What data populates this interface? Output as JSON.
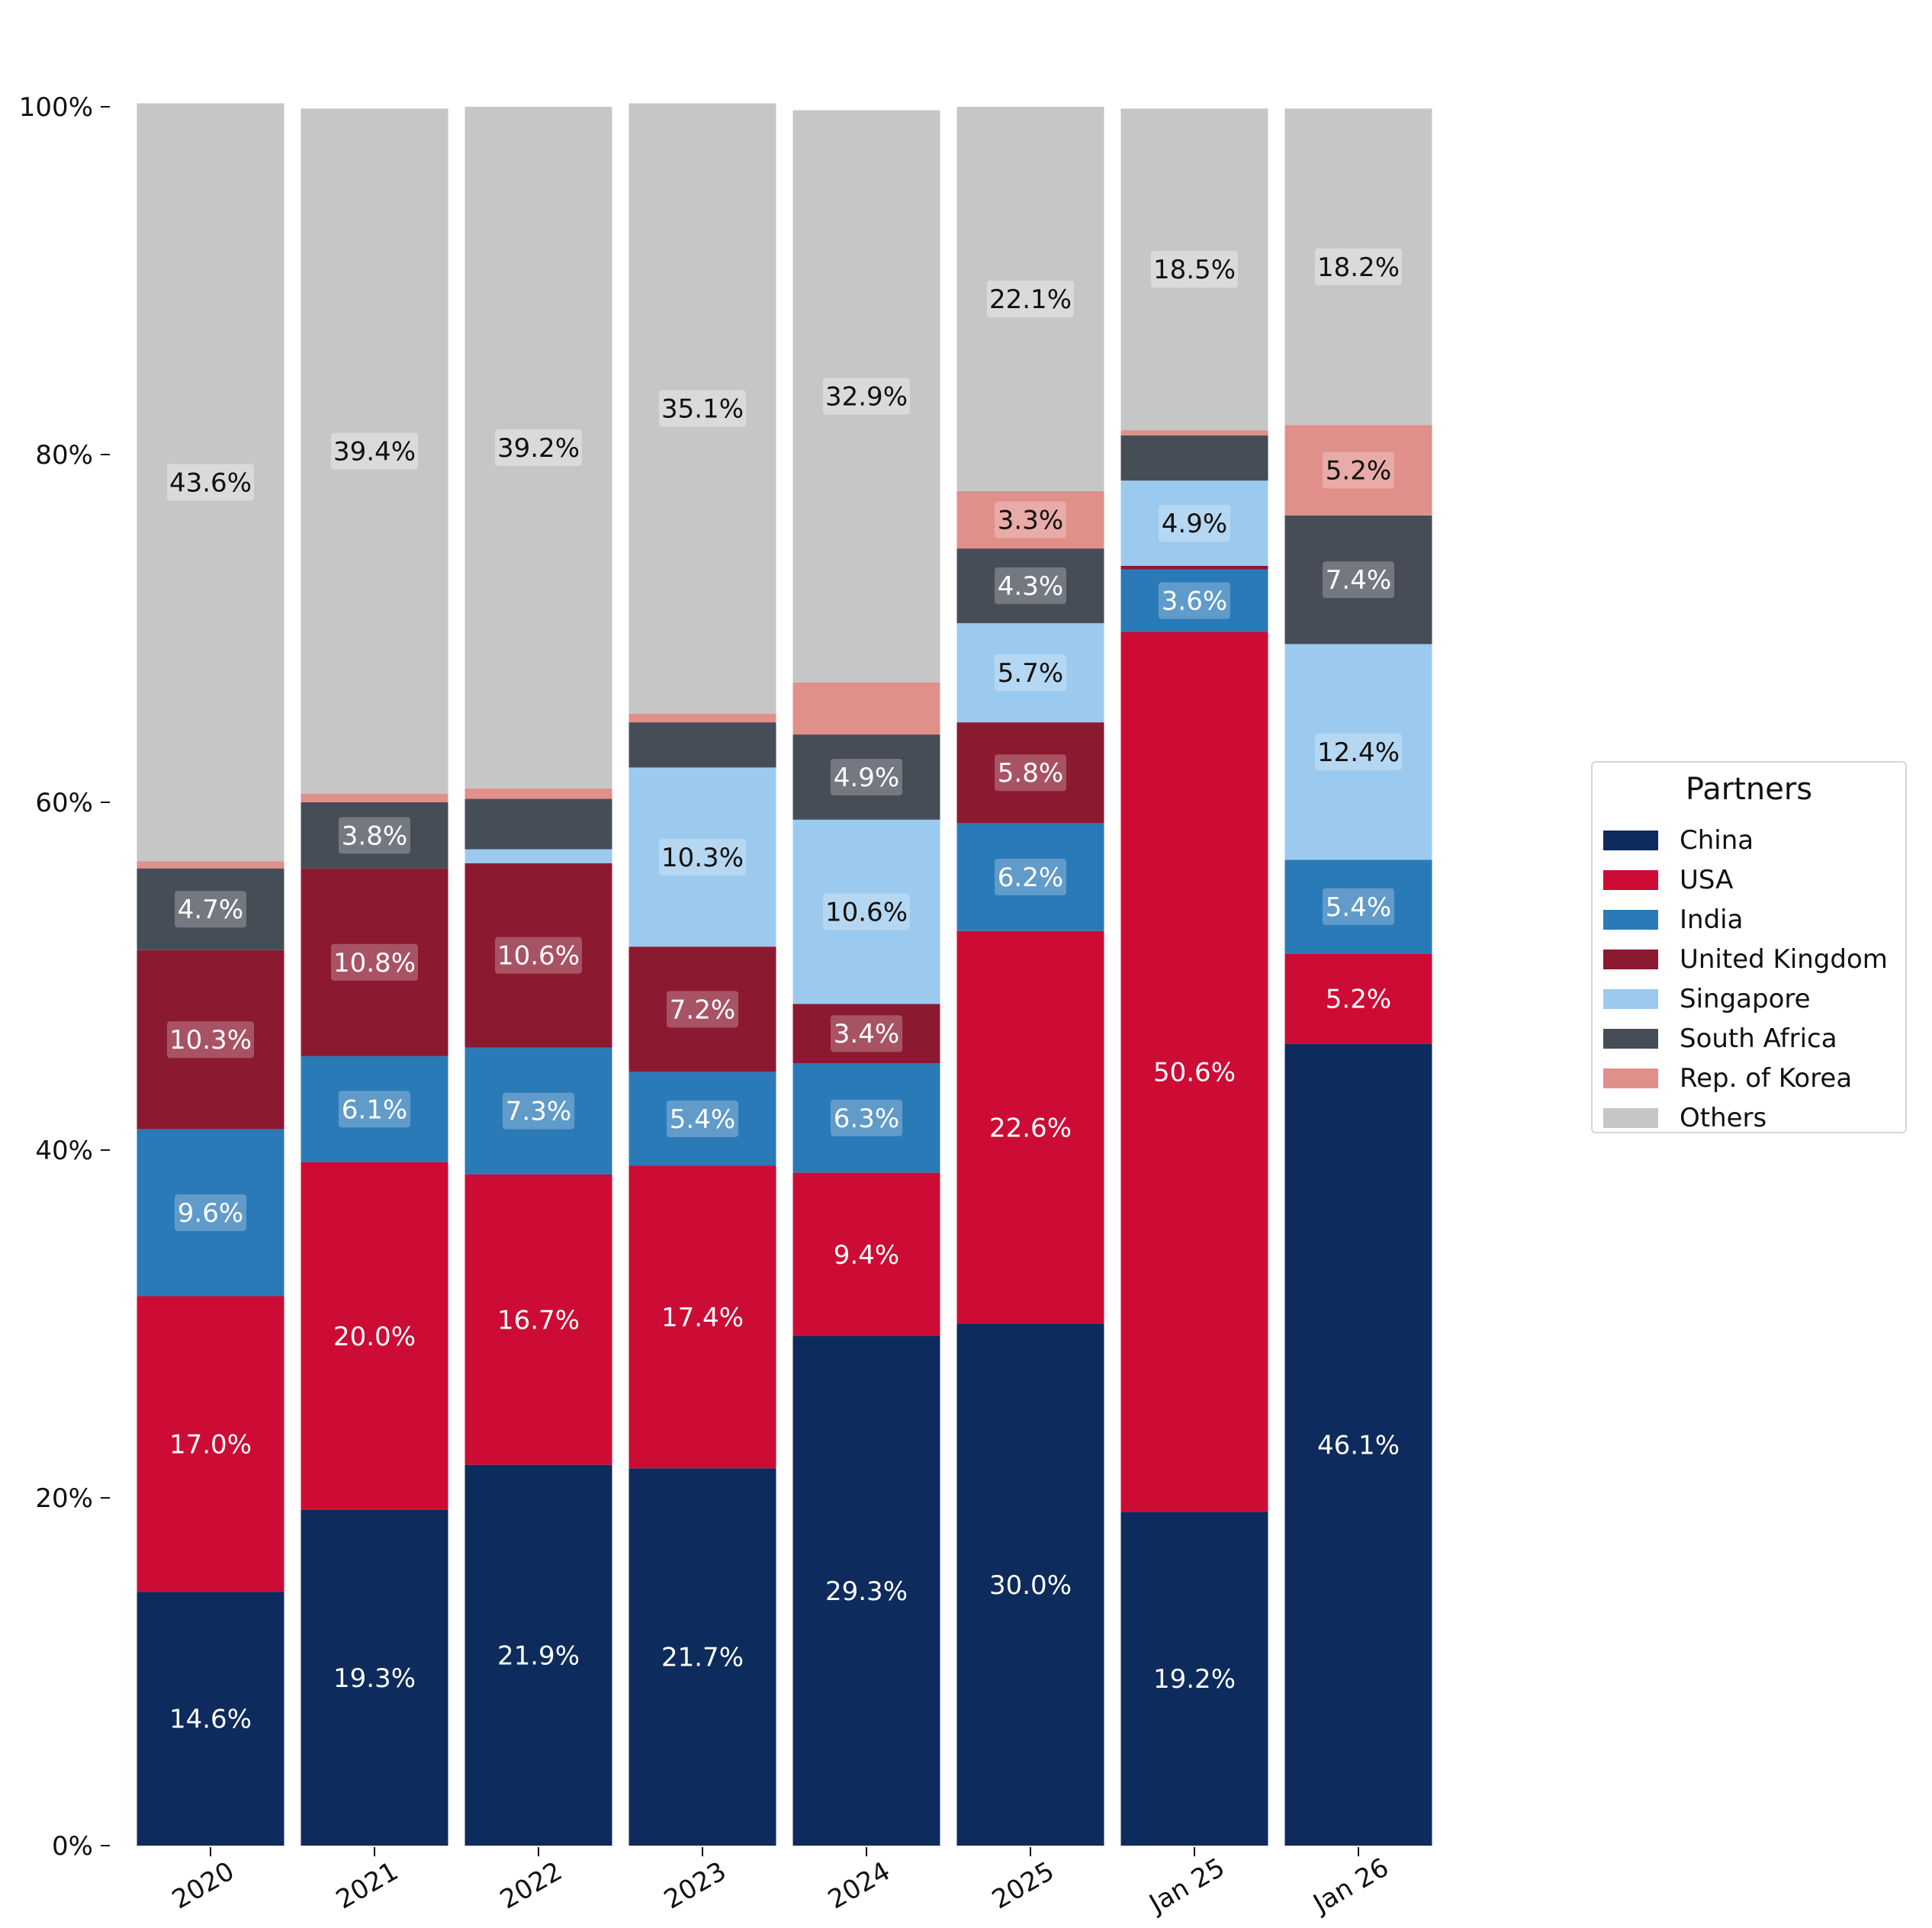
{
  "chart_data": {
    "type": "bar",
    "stacked": true,
    "normalized": true,
    "categories": [
      "2020",
      "2021",
      "2022",
      "2023",
      "2024",
      "2025",
      "Jan 25",
      "Jan 26"
    ],
    "ylim": [
      0,
      100
    ],
    "yticks": [
      "0%",
      "20%",
      "40%",
      "60%",
      "80%",
      "100%"
    ],
    "grid": false,
    "legend_position": "right",
    "series": [
      {
        "name": "China",
        "color": "#0d2b5c",
        "values": [
          14.6,
          19.3,
          21.9,
          21.7,
          29.3,
          30.0,
          19.2,
          46.1
        ],
        "labels": [
          "14.6%",
          "19.3%",
          "21.9%",
          "21.7%",
          "29.3%",
          "30.0%",
          "19.2%",
          "46.1%"
        ]
      },
      {
        "name": "USA",
        "color": "#cc0c35",
        "values": [
          17.0,
          20.0,
          16.7,
          17.4,
          9.4,
          22.6,
          50.6,
          5.2
        ],
        "labels": [
          "17.0%",
          "20.0%",
          "16.7%",
          "17.4%",
          "9.4%",
          "22.6%",
          "50.6%",
          "5.2%"
        ]
      },
      {
        "name": "India",
        "color": "#2b7ab8",
        "values": [
          9.6,
          6.1,
          7.3,
          5.4,
          6.3,
          6.2,
          3.6,
          5.4
        ],
        "labels": [
          "9.6%",
          "6.1%",
          "7.3%",
          "5.4%",
          "6.3%",
          "6.2%",
          "3.6%",
          "5.4%"
        ]
      },
      {
        "name": "United Kingdom",
        "color": "#8b1a30",
        "values": [
          10.3,
          10.8,
          10.6,
          7.2,
          3.4,
          5.8,
          0.2,
          0
        ],
        "labels": [
          "10.3%",
          "10.8%",
          "10.6%",
          "7.2%",
          "3.4%",
          "5.8%",
          "",
          ""
        ]
      },
      {
        "name": "Singapore",
        "color": "#9ccaee",
        "values": [
          0,
          0,
          0.8,
          10.3,
          10.6,
          5.7,
          4.9,
          12.4
        ],
        "labels": [
          "",
          "",
          "",
          "10.3%",
          "10.6%",
          "5.7%",
          "4.9%",
          "12.4%"
        ]
      },
      {
        "name": "South Africa",
        "color": "#464d57",
        "values": [
          4.7,
          3.8,
          2.9,
          2.6,
          4.9,
          4.3,
          2.6,
          7.4
        ],
        "labels": [
          "4.7%",
          "3.8%",
          "",
          "",
          "4.9%",
          "4.3%",
          "",
          "7.4%"
        ]
      },
      {
        "name": "Rep. of Korea",
        "color": "#e08f8a",
        "values": [
          0.4,
          0.5,
          0.6,
          0.5,
          3.0,
          3.3,
          0.3,
          5.2
        ],
        "labels": [
          "",
          "",
          "",
          "",
          "",
          "3.3%",
          "",
          "5.2%"
        ]
      },
      {
        "name": "Others",
        "color": "#c6c6c6",
        "values": [
          43.6,
          39.4,
          39.2,
          35.1,
          32.9,
          22.1,
          18.5,
          18.2
        ],
        "labels": [
          "43.6%",
          "39.4%",
          "39.2%",
          "35.1%",
          "32.9%",
          "22.1%",
          "18.5%",
          "18.2%"
        ]
      }
    ]
  },
  "legend": {
    "title": "Partners",
    "items": [
      "China",
      "USA",
      "India",
      "United Kingdom",
      "Singapore",
      "South Africa",
      "Rep. of Korea",
      "Others"
    ]
  }
}
